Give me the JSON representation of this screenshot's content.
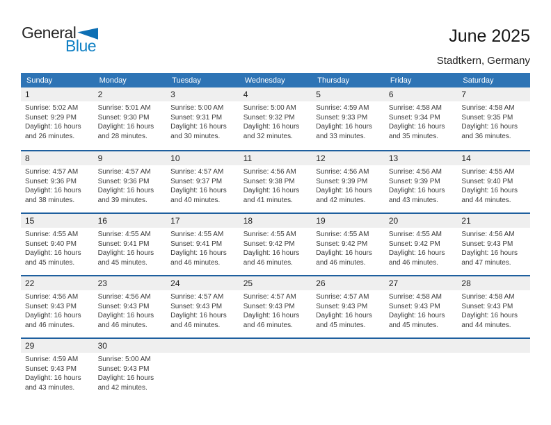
{
  "logo": {
    "part1": "General",
    "part2": "Blue"
  },
  "header": {
    "title": "June 2025",
    "subtitle": "Stadtkern, Germany"
  },
  "colors": {
    "weekday_header_bg": "#2e74b5",
    "week_separator": "#1e5f9e",
    "day_band_bg": "#efefef",
    "logo_blue": "#1080c4"
  },
  "weekdays": [
    "Sunday",
    "Monday",
    "Tuesday",
    "Wednesday",
    "Thursday",
    "Friday",
    "Saturday"
  ],
  "weeks": [
    [
      {
        "day": "1",
        "lines": [
          "Sunrise: 5:02 AM",
          "Sunset: 9:29 PM",
          "Daylight: 16 hours",
          "and 26 minutes."
        ]
      },
      {
        "day": "2",
        "lines": [
          "Sunrise: 5:01 AM",
          "Sunset: 9:30 PM",
          "Daylight: 16 hours",
          "and 28 minutes."
        ]
      },
      {
        "day": "3",
        "lines": [
          "Sunrise: 5:00 AM",
          "Sunset: 9:31 PM",
          "Daylight: 16 hours",
          "and 30 minutes."
        ]
      },
      {
        "day": "4",
        "lines": [
          "Sunrise: 5:00 AM",
          "Sunset: 9:32 PM",
          "Daylight: 16 hours",
          "and 32 minutes."
        ]
      },
      {
        "day": "5",
        "lines": [
          "Sunrise: 4:59 AM",
          "Sunset: 9:33 PM",
          "Daylight: 16 hours",
          "and 33 minutes."
        ]
      },
      {
        "day": "6",
        "lines": [
          "Sunrise: 4:58 AM",
          "Sunset: 9:34 PM",
          "Daylight: 16 hours",
          "and 35 minutes."
        ]
      },
      {
        "day": "7",
        "lines": [
          "Sunrise: 4:58 AM",
          "Sunset: 9:35 PM",
          "Daylight: 16 hours",
          "and 36 minutes."
        ]
      }
    ],
    [
      {
        "day": "8",
        "lines": [
          "Sunrise: 4:57 AM",
          "Sunset: 9:36 PM",
          "Daylight: 16 hours",
          "and 38 minutes."
        ]
      },
      {
        "day": "9",
        "lines": [
          "Sunrise: 4:57 AM",
          "Sunset: 9:36 PM",
          "Daylight: 16 hours",
          "and 39 minutes."
        ]
      },
      {
        "day": "10",
        "lines": [
          "Sunrise: 4:57 AM",
          "Sunset: 9:37 PM",
          "Daylight: 16 hours",
          "and 40 minutes."
        ]
      },
      {
        "day": "11",
        "lines": [
          "Sunrise: 4:56 AM",
          "Sunset: 9:38 PM",
          "Daylight: 16 hours",
          "and 41 minutes."
        ]
      },
      {
        "day": "12",
        "lines": [
          "Sunrise: 4:56 AM",
          "Sunset: 9:39 PM",
          "Daylight: 16 hours",
          "and 42 minutes."
        ]
      },
      {
        "day": "13",
        "lines": [
          "Sunrise: 4:56 AM",
          "Sunset: 9:39 PM",
          "Daylight: 16 hours",
          "and 43 minutes."
        ]
      },
      {
        "day": "14",
        "lines": [
          "Sunrise: 4:55 AM",
          "Sunset: 9:40 PM",
          "Daylight: 16 hours",
          "and 44 minutes."
        ]
      }
    ],
    [
      {
        "day": "15",
        "lines": [
          "Sunrise: 4:55 AM",
          "Sunset: 9:40 PM",
          "Daylight: 16 hours",
          "and 45 minutes."
        ]
      },
      {
        "day": "16",
        "lines": [
          "Sunrise: 4:55 AM",
          "Sunset: 9:41 PM",
          "Daylight: 16 hours",
          "and 45 minutes."
        ]
      },
      {
        "day": "17",
        "lines": [
          "Sunrise: 4:55 AM",
          "Sunset: 9:41 PM",
          "Daylight: 16 hours",
          "and 46 minutes."
        ]
      },
      {
        "day": "18",
        "lines": [
          "Sunrise: 4:55 AM",
          "Sunset: 9:42 PM",
          "Daylight: 16 hours",
          "and 46 minutes."
        ]
      },
      {
        "day": "19",
        "lines": [
          "Sunrise: 4:55 AM",
          "Sunset: 9:42 PM",
          "Daylight: 16 hours",
          "and 46 minutes."
        ]
      },
      {
        "day": "20",
        "lines": [
          "Sunrise: 4:55 AM",
          "Sunset: 9:42 PM",
          "Daylight: 16 hours",
          "and 46 minutes."
        ]
      },
      {
        "day": "21",
        "lines": [
          "Sunrise: 4:56 AM",
          "Sunset: 9:43 PM",
          "Daylight: 16 hours",
          "and 47 minutes."
        ]
      }
    ],
    [
      {
        "day": "22",
        "lines": [
          "Sunrise: 4:56 AM",
          "Sunset: 9:43 PM",
          "Daylight: 16 hours",
          "and 46 minutes."
        ]
      },
      {
        "day": "23",
        "lines": [
          "Sunrise: 4:56 AM",
          "Sunset: 9:43 PM",
          "Daylight: 16 hours",
          "and 46 minutes."
        ]
      },
      {
        "day": "24",
        "lines": [
          "Sunrise: 4:57 AM",
          "Sunset: 9:43 PM",
          "Daylight: 16 hours",
          "and 46 minutes."
        ]
      },
      {
        "day": "25",
        "lines": [
          "Sunrise: 4:57 AM",
          "Sunset: 9:43 PM",
          "Daylight: 16 hours",
          "and 46 minutes."
        ]
      },
      {
        "day": "26",
        "lines": [
          "Sunrise: 4:57 AM",
          "Sunset: 9:43 PM",
          "Daylight: 16 hours",
          "and 45 minutes."
        ]
      },
      {
        "day": "27",
        "lines": [
          "Sunrise: 4:58 AM",
          "Sunset: 9:43 PM",
          "Daylight: 16 hours",
          "and 45 minutes."
        ]
      },
      {
        "day": "28",
        "lines": [
          "Sunrise: 4:58 AM",
          "Sunset: 9:43 PM",
          "Daylight: 16 hours",
          "and 44 minutes."
        ]
      }
    ],
    [
      {
        "day": "29",
        "lines": [
          "Sunrise: 4:59 AM",
          "Sunset: 9:43 PM",
          "Daylight: 16 hours",
          "and 43 minutes."
        ]
      },
      {
        "day": "30",
        "lines": [
          "Sunrise: 5:00 AM",
          "Sunset: 9:43 PM",
          "Daylight: 16 hours",
          "and 42 minutes."
        ]
      },
      null,
      null,
      null,
      null,
      null
    ]
  ]
}
